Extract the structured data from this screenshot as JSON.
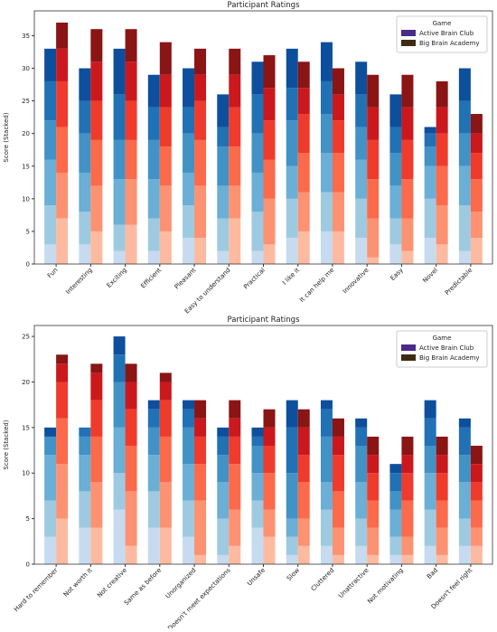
{
  "chart_data": [
    {
      "type": "bar",
      "title": "Participant Ratings",
      "ylabel": "Score (Stacked)",
      "legend_title": "Game",
      "legend": "upper right",
      "categories": [
        "Fun",
        "Interesting",
        "Exciting",
        "Efficient",
        "Pleasant",
        "Easy to understand",
        "Practical",
        "I like it",
        "It can help me",
        "Innovative",
        "Easy",
        "Novel",
        "Predictable"
      ],
      "ylim": [
        0,
        38.8
      ],
      "yticks": [
        0,
        5,
        10,
        15,
        20,
        25,
        30,
        35
      ],
      "series": [
        {
          "name": "Active Brain Club",
          "color": "#4b2a8a",
          "segment_colors": [
            "#c6dbef",
            "#9ecae1",
            "#6baed6",
            "#4292c6",
            "#2171b5",
            "#0d4f9c"
          ],
          "values": [
            [
              3,
              6,
              7,
              6,
              6,
              5
            ],
            [
              3,
              5,
              6,
              6,
              5,
              5
            ],
            [
              2,
              4,
              7,
              6,
              7,
              7
            ],
            [
              2,
              5,
              6,
              6,
              5,
              5
            ],
            [
              4,
              5,
              5,
              6,
              4,
              6
            ],
            [
              2,
              5,
              5,
              6,
              3,
              5
            ],
            [
              2,
              6,
              6,
              6,
              6,
              5
            ],
            [
              4,
              6,
              5,
              7,
              5,
              6
            ],
            [
              5,
              6,
              6,
              6,
              5,
              6
            ],
            [
              4,
              6,
              6,
              5,
              5,
              5
            ],
            [
              3,
              4,
              5,
              5,
              4,
              5
            ],
            [
              4,
              6,
              5,
              3,
              2,
              1
            ],
            [
              2,
              7,
              6,
              5,
              5,
              5
            ]
          ]
        },
        {
          "name": "Big Brain Academy",
          "color": "#3d2b14",
          "segment_colors": [
            "#fcbba1",
            "#fc9272",
            "#fb6a4a",
            "#ef3b2c",
            "#cb181d",
            "#8b1414"
          ],
          "values": [
            [
              7,
              7,
              7,
              7,
              5,
              4
            ],
            [
              5,
              7,
              7,
              6,
              6,
              5
            ],
            [
              6,
              7,
              6,
              6,
              6,
              5
            ],
            [
              5,
              7,
              6,
              6,
              5,
              5
            ],
            [
              4,
              8,
              7,
              6,
              4,
              4
            ],
            [
              7,
              5,
              6,
              6,
              5,
              4
            ],
            [
              3,
              7,
              6,
              6,
              5,
              5
            ],
            [
              5,
              6,
              6,
              6,
              4,
              4
            ],
            [
              5,
              6,
              6,
              5,
              4,
              4
            ],
            [
              1,
              6,
              6,
              6,
              5,
              5
            ],
            [
              2,
              5,
              6,
              6,
              5,
              5
            ],
            [
              3,
              6,
              6,
              5,
              4,
              4
            ],
            [
              4,
              4,
              5,
              4,
              3,
              3
            ]
          ]
        }
      ]
    },
    {
      "type": "bar",
      "title": "Participant Ratings",
      "ylabel": "Score (Stacked)",
      "legend_title": "Game",
      "legend": "upper right",
      "categories": [
        "Hard to remember",
        "Not worth it",
        "Not creative",
        "Same as before",
        "Unorganized",
        "Doesn't meet expectations",
        "Unsafe",
        "Slow",
        "Cluttered",
        "Unattractive",
        "Not motivating",
        "Bad",
        "Doesn't feel right"
      ],
      "ylim": [
        0,
        26.2
      ],
      "yticks": [
        0,
        5,
        10,
        15,
        20,
        25
      ],
      "series": [
        {
          "name": "Active Brain Club",
          "color": "#4b2a8a",
          "segment_colors": [
            "#c6dbef",
            "#9ecae1",
            "#6baed6",
            "#4292c6",
            "#2171b5",
            "#0d4f9c"
          ],
          "values": [
            [
              3,
              4,
              5,
              2,
              0,
              1
            ],
            [
              4,
              4,
              4,
              2,
              1,
              0
            ],
            [
              6,
              4,
              5,
              5,
              3,
              2
            ],
            [
              4,
              4,
              4,
              3,
              2,
              1
            ],
            [
              3,
              4,
              4,
              4,
              2,
              1
            ],
            [
              1,
              4,
              4,
              3,
              2,
              1
            ],
            [
              4,
              3,
              3,
              3,
              1,
              1
            ],
            [
              1,
              2,
              2,
              5,
              5,
              3
            ],
            [
              2,
              4,
              3,
              5,
              3,
              1
            ],
            [
              2,
              3,
              4,
              4,
              2,
              1
            ],
            [
              1,
              2,
              3,
              2,
              2,
              1
            ],
            [
              2,
              4,
              4,
              3,
              3,
              2
            ],
            [
              2,
              3,
              4,
              3,
              3,
              1
            ]
          ]
        },
        {
          "name": "Big Brain Academy",
          "color": "#3d2b14",
          "segment_colors": [
            "#fcbba1",
            "#fc9272",
            "#fb6a4a",
            "#ef3b2c",
            "#cb181d",
            "#8b1414"
          ],
          "values": [
            [
              5,
              6,
              5,
              4,
              2,
              1
            ],
            [
              4,
              5,
              5,
              4,
              3,
              1
            ],
            [
              2,
              6,
              5,
              4,
              3,
              2
            ],
            [
              4,
              5,
              5,
              4,
              2,
              1
            ],
            [
              1,
              6,
              4,
              3,
              2,
              2
            ],
            [
              2,
              4,
              5,
              3,
              2,
              2
            ],
            [
              3,
              3,
              4,
              3,
              2,
              2
            ],
            [
              2,
              3,
              4,
              3,
              3,
              2
            ],
            [
              1,
              3,
              4,
              4,
              2,
              2
            ],
            [
              1,
              3,
              3,
              3,
              2,
              2
            ],
            [
              1,
              2,
              4,
              3,
              2,
              2
            ],
            [
              1,
              3,
              3,
              3,
              2,
              2
            ],
            [
              2,
              2,
              3,
              2,
              2,
              2
            ]
          ]
        }
      ]
    }
  ]
}
